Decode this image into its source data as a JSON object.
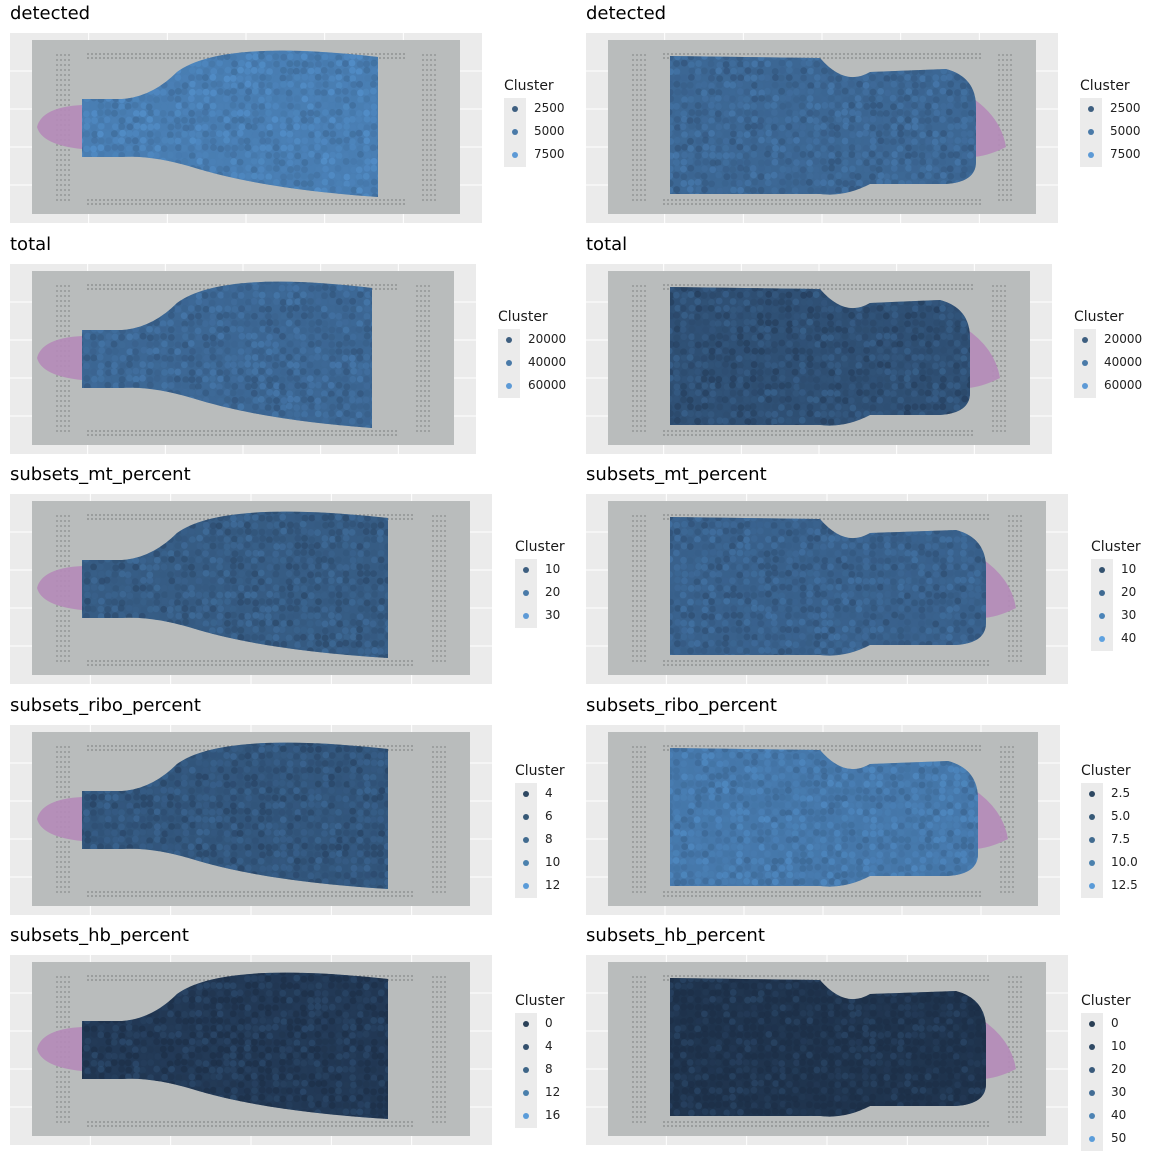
{
  "chart_data": [
    {
      "type": "spatial-scatter",
      "title": "detected",
      "sample": "left",
      "legend_title": "Cluster",
      "legend_labels": [
        "2500",
        "5000",
        "7500"
      ],
      "legend_colors": [
        "#3e5f80",
        "#4a7aa8",
        "#5d9ad6"
      ],
      "value_level": 0.7
    },
    {
      "type": "spatial-scatter",
      "title": "detected",
      "sample": "right",
      "legend_title": "Cluster",
      "legend_labels": [
        "2500",
        "5000",
        "7500"
      ],
      "legend_colors": [
        "#3e5f80",
        "#4a7aa8",
        "#5d9ad6"
      ],
      "value_level": 0.5
    },
    {
      "type": "spatial-scatter",
      "title": "total",
      "sample": "left",
      "legend_title": "Cluster",
      "legend_labels": [
        "20000",
        "40000",
        "60000"
      ],
      "legend_colors": [
        "#3e5f80",
        "#4a7aa8",
        "#5d9ad6"
      ],
      "value_level": 0.5
    },
    {
      "type": "spatial-scatter",
      "title": "total",
      "sample": "right",
      "legend_title": "Cluster",
      "legend_labels": [
        "20000",
        "40000",
        "60000"
      ],
      "legend_colors": [
        "#3e5f80",
        "#4a7aa8",
        "#5d9ad6"
      ],
      "value_level": 0.3
    },
    {
      "type": "spatial-scatter",
      "title": "subsets_mt_percent",
      "sample": "left",
      "legend_title": "Cluster",
      "legend_labels": [
        "10",
        "20",
        "30"
      ],
      "legend_colors": [
        "#3e5f80",
        "#4a7aa8",
        "#5d9ad6"
      ],
      "value_level": 0.4
    },
    {
      "type": "spatial-scatter",
      "title": "subsets_mt_percent",
      "sample": "right",
      "legend_title": "Cluster",
      "legend_labels": [
        "10",
        "20",
        "30",
        "40"
      ],
      "legend_colors": [
        "#34526f",
        "#3f6a92",
        "#4b84b8",
        "#5fa2e0"
      ],
      "value_level": 0.45
    },
    {
      "type": "spatial-scatter",
      "title": "subsets_ribo_percent",
      "sample": "left",
      "legend_title": "Cluster",
      "legend_labels": [
        "4",
        "6",
        "8",
        "10",
        "12"
      ],
      "legend_colors": [
        "#2e4862",
        "#375977",
        "#416b8f",
        "#4b81ad",
        "#5a9bd8"
      ],
      "value_level": 0.35
    },
    {
      "type": "spatial-scatter",
      "title": "subsets_ribo_percent",
      "sample": "right",
      "legend_title": "Cluster",
      "legend_labels": [
        "2.5",
        "5.0",
        "7.5",
        "10.0",
        "12.5"
      ],
      "legend_colors": [
        "#2e4862",
        "#375977",
        "#416b8f",
        "#4b81ad",
        "#5a9bd8"
      ],
      "value_level": 0.65
    },
    {
      "type": "spatial-scatter",
      "title": "subsets_hb_percent",
      "sample": "left",
      "legend_title": "Cluster",
      "legend_labels": [
        "0",
        "4",
        "8",
        "12",
        "16"
      ],
      "legend_colors": [
        "#2b4158",
        "#34506d",
        "#3e6587",
        "#4a7fab",
        "#5a9cd9"
      ],
      "value_level": 0.1
    },
    {
      "type": "spatial-scatter",
      "title": "subsets_hb_percent",
      "sample": "right",
      "legend_title": "Cluster",
      "legend_labels": [
        "0",
        "10",
        "20",
        "30",
        "40",
        "50"
      ],
      "legend_colors": [
        "#293e54",
        "#304a65",
        "#395a7b",
        "#426c94",
        "#4d83b3",
        "#5b9dda"
      ],
      "value_level": 0.05
    }
  ]
}
